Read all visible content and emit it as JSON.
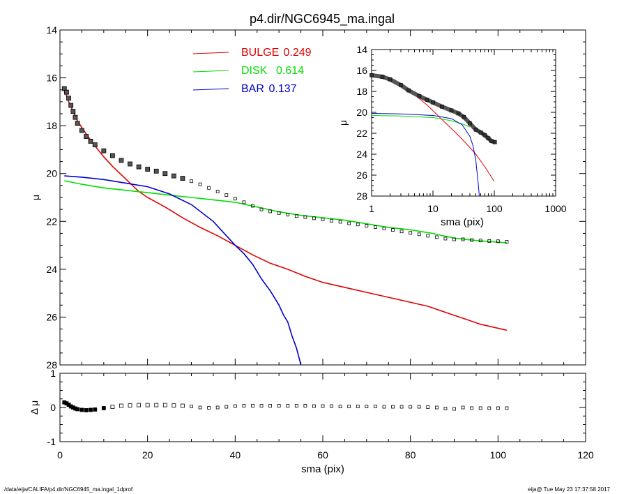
{
  "title": "p4.dir/NGC6945_ma.ingal",
  "footer": {
    "path": "/data/eija/CALIFA/p4.dir/NGC6945_ma.ingal_1dprof",
    "stamp": "eija@  Tue May 23 17:37:58 2017"
  },
  "colors": {
    "bulge": "#e00000",
    "disk": "#00dd00",
    "bar": "#0000cc",
    "data": "#000000"
  },
  "chart_data": [
    {
      "id": "main",
      "type": "line",
      "title": "p4.dir/NGC6945_ma.ingal",
      "xlabel": "",
      "ylabel": "μ",
      "xlim": [
        0,
        120
      ],
      "ylim": [
        28,
        14
      ],
      "yticks": [
        "14",
        "16",
        "18",
        "20",
        "22",
        "24",
        "26",
        "28"
      ],
      "legend_position": "top-center",
      "legend": [
        {
          "label": "BULGE",
          "value": "0.249",
          "color": "#e00000"
        },
        {
          "label": "DISK",
          "value": "0.614",
          "color": "#00dd00"
        },
        {
          "label": "BAR",
          "value": "0.137",
          "color": "#0000cc"
        }
      ],
      "series": [
        {
          "name": "BULGE",
          "color": "#e00000",
          "x": [
            1,
            2,
            4,
            6,
            8,
            10,
            12,
            14,
            16,
            18,
            20,
            24,
            28,
            32,
            36,
            40,
            44,
            48,
            52,
            56,
            60,
            66,
            72,
            78,
            84,
            88,
            92,
            96,
            102
          ],
          "y": [
            16.5,
            17.0,
            17.8,
            18.35,
            18.85,
            19.3,
            19.7,
            20.05,
            20.4,
            20.75,
            21.0,
            21.4,
            21.85,
            22.25,
            22.6,
            23.0,
            23.4,
            23.75,
            24.0,
            24.3,
            24.55,
            24.8,
            25.05,
            25.3,
            25.55,
            25.8,
            26.05,
            26.3,
            26.55
          ]
        },
        {
          "name": "DISK",
          "color": "#00dd00",
          "x": [
            1,
            5,
            10,
            15,
            20,
            25,
            30,
            35,
            40,
            45,
            50,
            55,
            60,
            65,
            70,
            75,
            80,
            85,
            90,
            95,
            102
          ],
          "y": [
            20.3,
            20.45,
            20.6,
            20.7,
            20.8,
            20.9,
            21.0,
            21.1,
            21.2,
            21.4,
            21.6,
            21.75,
            21.85,
            21.95,
            22.1,
            22.25,
            22.35,
            22.5,
            22.7,
            22.8,
            22.9
          ]
        },
        {
          "name": "BAR",
          "color": "#0000cc",
          "x": [
            1,
            5,
            10,
            15,
            20,
            25,
            30,
            35,
            38,
            40,
            42,
            44,
            46,
            48,
            50,
            51,
            52,
            53,
            54,
            55
          ],
          "y": [
            20.1,
            20.15,
            20.25,
            20.4,
            20.55,
            20.85,
            21.3,
            22.0,
            22.6,
            23.0,
            23.35,
            23.8,
            24.4,
            24.9,
            25.5,
            25.9,
            26.2,
            26.8,
            27.3,
            28.0
          ]
        },
        {
          "name": "",
          "color": "#000000",
          "marker": "square",
          "x": [
            1,
            1.5,
            2,
            2.5,
            3,
            3.5,
            4,
            5,
            6,
            7,
            8,
            10,
            12,
            14,
            16,
            18,
            20,
            22,
            24,
            26,
            28,
            30,
            32,
            34,
            36,
            38,
            40,
            42,
            44,
            46,
            48,
            50,
            52,
            54,
            56,
            58,
            60,
            62,
            64,
            66,
            68,
            70,
            72,
            74,
            76,
            78,
            80,
            82,
            84,
            86,
            88,
            90,
            92,
            94,
            96,
            98,
            100,
            102
          ],
          "y": [
            16.45,
            16.6,
            16.85,
            17.15,
            17.4,
            17.65,
            17.9,
            18.2,
            18.45,
            18.65,
            18.8,
            19.05,
            19.25,
            19.45,
            19.6,
            19.72,
            19.82,
            19.9,
            20.0,
            20.1,
            20.2,
            20.32,
            20.45,
            20.6,
            20.75,
            20.9,
            21.05,
            21.2,
            21.35,
            21.5,
            21.58,
            21.65,
            21.72,
            21.78,
            21.82,
            21.87,
            21.92,
            21.97,
            22.02,
            22.08,
            22.13,
            22.18,
            22.24,
            22.3,
            22.36,
            22.42,
            22.48,
            22.54,
            22.6,
            22.66,
            22.72,
            22.75,
            22.75,
            22.78,
            22.8,
            22.82,
            22.83,
            22.85
          ]
        }
      ]
    },
    {
      "id": "residual",
      "type": "scatter",
      "xlabel": "sma (pix)",
      "ylabel": "Δ μ",
      "xlim": [
        0,
        120
      ],
      "ylim": [
        -1,
        1
      ],
      "xticks": [
        "0",
        "20",
        "40",
        "60",
        "80",
        "100",
        "120"
      ],
      "yticks": [
        "1",
        "0",
        "-1"
      ],
      "series": [
        {
          "name": "",
          "color": "#000000",
          "marker": "square",
          "x": [
            1,
            1.5,
            2,
            2.5,
            3,
            3.5,
            4,
            5,
            6,
            7,
            8,
            10,
            12,
            14,
            16,
            18,
            20,
            22,
            24,
            26,
            28,
            30,
            32,
            34,
            36,
            38,
            40,
            42,
            44,
            46,
            48,
            50,
            52,
            54,
            56,
            58,
            60,
            62,
            64,
            66,
            68,
            70,
            72,
            74,
            76,
            78,
            80,
            82,
            84,
            86,
            88,
            90,
            92,
            94,
            96,
            98,
            100,
            102
          ],
          "y": [
            0.15,
            0.12,
            0.08,
            0.03,
            0.0,
            -0.03,
            -0.05,
            -0.07,
            -0.08,
            -0.07,
            -0.06,
            -0.02,
            0.02,
            0.05,
            0.06,
            0.07,
            0.07,
            0.07,
            0.07,
            0.06,
            0.05,
            0.03,
            0.0,
            -0.01,
            0.0,
            0.02,
            0.04,
            0.05,
            0.05,
            0.05,
            0.05,
            0.05,
            0.05,
            0.05,
            0.05,
            0.04,
            0.04,
            0.04,
            0.03,
            0.03,
            0.03,
            0.03,
            0.03,
            0.02,
            0.02,
            0.02,
            0.02,
            0.02,
            0.01,
            0.0,
            -0.03,
            -0.04,
            0.0,
            -0.02,
            -0.02,
            -0.02,
            -0.02,
            -0.02
          ]
        }
      ]
    },
    {
      "id": "inset",
      "type": "line",
      "xlabel": "sma (pix)",
      "ylabel": "μ",
      "xscale": "log",
      "xlim": [
        1,
        1000
      ],
      "ylim": [
        28,
        14
      ],
      "xticks": [
        "1",
        "10",
        "100",
        "1000"
      ],
      "yticks": [
        "14",
        "16",
        "18",
        "20",
        "22",
        "24",
        "26",
        "28"
      ],
      "series": [
        {
          "name": "BULGE",
          "color": "#e00000",
          "x": [
            1,
            2,
            3,
            5,
            8,
            12,
            18,
            25,
            35,
            50,
            70,
            100
          ],
          "y": [
            16.4,
            16.9,
            17.4,
            18.3,
            19.3,
            20.3,
            21.3,
            22.1,
            23.0,
            24.0,
            25.2,
            26.6
          ]
        },
        {
          "name": "DISK",
          "color": "#00dd00",
          "x": [
            1,
            3,
            10,
            20,
            30,
            40
          ],
          "y": [
            20.3,
            20.35,
            20.5,
            20.8,
            21.1,
            21.4
          ]
        },
        {
          "name": "BAR",
          "color": "#0000cc",
          "x": [
            1,
            3,
            10,
            20,
            30,
            40,
            45,
            50,
            55,
            57
          ],
          "y": [
            20.1,
            20.15,
            20.3,
            20.6,
            21.2,
            22.3,
            23.2,
            24.6,
            27.0,
            28.0
          ]
        },
        {
          "name": "",
          "color": "#000000",
          "marker": "square",
          "x": [
            1,
            1.5,
            2,
            3,
            4,
            6,
            8,
            10,
            14,
            20,
            26,
            32,
            40,
            50,
            60,
            70,
            80,
            90,
            102
          ],
          "y": [
            16.45,
            16.6,
            16.85,
            17.4,
            17.9,
            18.45,
            18.8,
            19.05,
            19.45,
            19.82,
            20.1,
            20.45,
            21.05,
            21.65,
            21.92,
            22.18,
            22.48,
            22.75,
            22.85
          ]
        }
      ]
    }
  ]
}
